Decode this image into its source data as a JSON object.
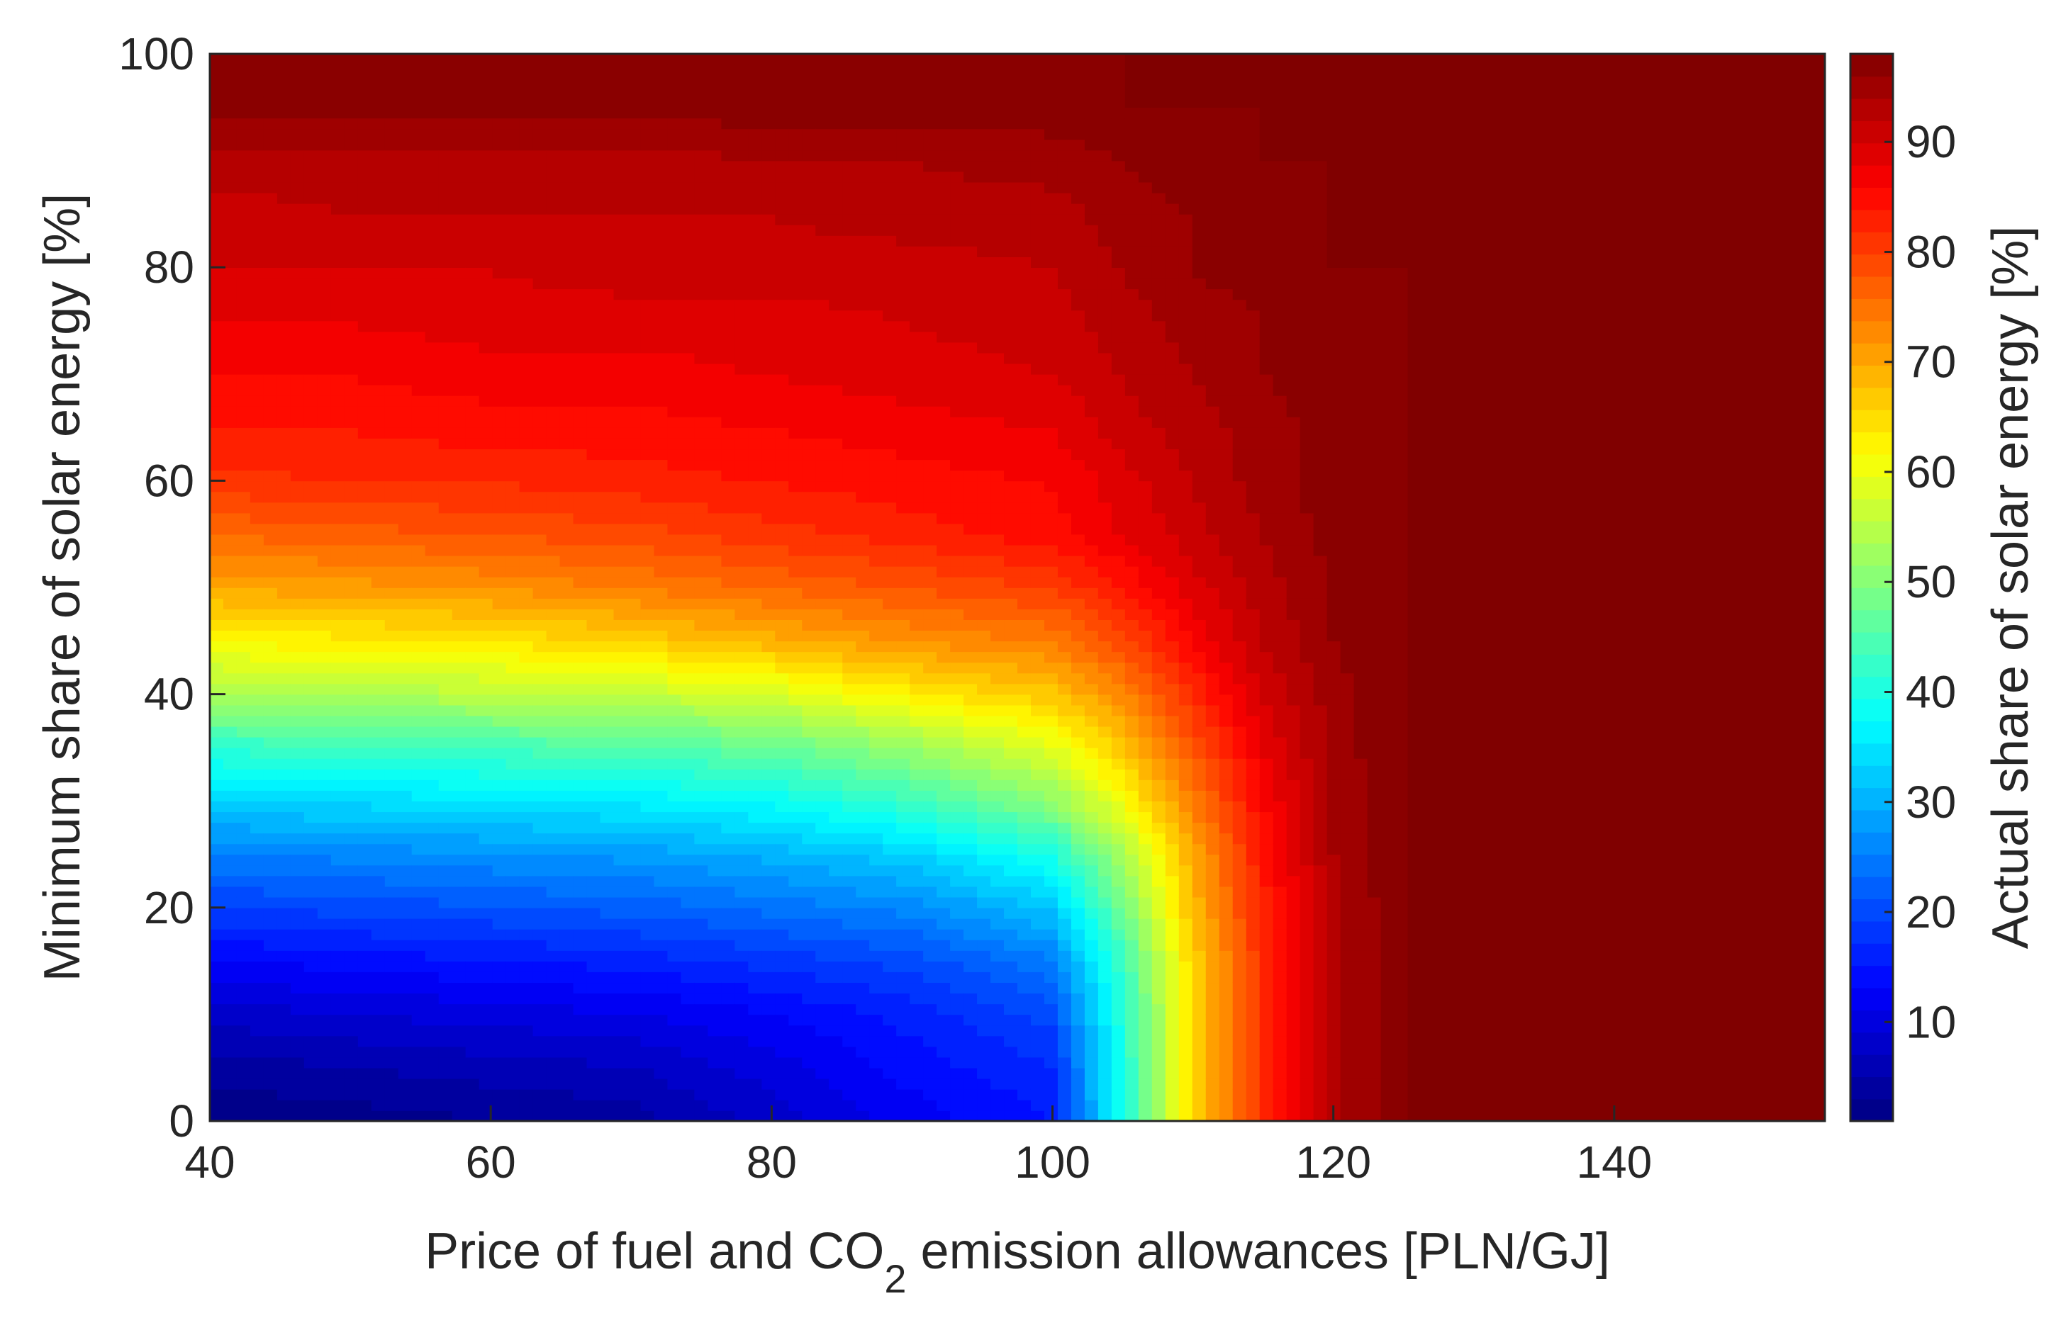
{
  "chart_data": {
    "type": "heatmap",
    "subtype": "filled-contour",
    "title": "",
    "xlabel": {
      "prefix": "Price of fuel and CO",
      "subscript": "2",
      "suffix": " emission allowances [PLN/GJ]"
    },
    "ylabel": "Minimum share of solar energy [%]",
    "colorbar_label": "Actual share of solar energy [%]",
    "colormap": "jet",
    "xlim": [
      40,
      155
    ],
    "ylim": [
      0,
      100
    ],
    "clim": [
      1,
      98
    ],
    "xticks": [
      40,
      60,
      80,
      100,
      120,
      140
    ],
    "yticks": [
      0,
      20,
      40,
      60,
      80,
      100
    ],
    "colorbar_ticks": [
      10,
      20,
      30,
      40,
      50,
      60,
      70,
      80,
      90
    ],
    "x": [
      40,
      50,
      60,
      70,
      80,
      90,
      100,
      105,
      110,
      115,
      120,
      125,
      130,
      140,
      155
    ],
    "y": [
      0,
      5,
      10,
      15,
      20,
      25,
      30,
      35,
      40,
      45,
      50,
      55,
      60,
      65,
      70,
      75,
      80,
      85,
      90,
      95,
      100
    ],
    "z": [
      [
        1,
        2,
        3,
        4,
        8,
        12,
        15,
        40,
        65,
        82,
        93,
        98,
        98,
        98,
        98
      ],
      [
        4,
        5,
        6,
        7,
        10,
        14,
        17,
        40,
        65,
        82,
        93,
        98,
        98,
        98,
        98
      ],
      [
        8,
        9,
        10,
        11,
        13,
        16,
        20,
        41,
        65,
        82,
        93,
        98,
        98,
        98,
        98
      ],
      [
        13,
        14,
        15,
        16,
        18,
        20,
        25,
        43,
        66,
        82,
        93,
        98,
        98,
        98,
        98
      ],
      [
        19,
        20,
        21,
        22,
        24,
        26,
        32,
        48,
        68,
        83,
        93,
        98,
        98,
        98,
        98
      ],
      [
        25,
        26,
        27,
        28,
        30,
        33,
        40,
        53,
        70,
        84,
        94,
        98,
        98,
        98,
        98
      ],
      [
        33,
        34,
        35,
        36,
        38,
        43,
        51,
        61,
        74,
        86,
        94,
        98,
        98,
        98,
        98
      ],
      [
        42,
        43,
        44,
        45,
        47,
        52,
        59,
        67,
        78,
        88,
        95,
        98,
        98,
        98,
        98
      ],
      [
        53,
        54,
        55,
        56,
        58,
        63,
        67,
        73,
        82,
        90,
        95,
        98,
        98,
        98,
        98
      ],
      [
        62,
        63,
        64,
        66,
        69,
        72,
        74,
        79,
        86,
        92,
        96,
        98,
        98,
        98,
        98
      ],
      [
        70,
        71,
        72,
        74,
        76,
        78,
        80,
        84,
        89,
        93,
        96,
        98,
        98,
        98,
        98
      ],
      [
        76,
        77,
        78,
        79,
        81,
        83,
        85,
        88,
        91,
        94,
        97,
        98,
        98,
        98,
        98
      ],
      [
        81,
        82,
        82,
        83,
        84,
        85,
        86,
        89,
        92,
        95,
        97,
        98,
        98,
        98,
        98
      ],
      [
        84,
        84,
        85,
        85,
        86,
        87,
        88,
        91,
        93,
        95,
        97,
        98,
        98,
        98,
        98
      ],
      [
        86,
        86,
        87,
        87,
        88,
        89,
        90,
        92,
        94,
        96,
        97,
        98,
        98,
        98,
        98
      ],
      [
        88,
        88,
        89,
        89,
        89,
        90,
        91,
        93,
        95,
        96,
        97,
        98,
        98,
        98,
        98
      ],
      [
        90,
        90,
        90,
        91,
        91,
        91,
        92,
        94,
        96,
        97,
        98,
        98,
        98,
        98,
        98
      ],
      [
        91,
        92,
        92,
        92,
        92,
        93,
        93,
        95,
        96,
        97,
        98,
        98,
        98,
        98,
        98
      ],
      [
        93,
        93,
        93,
        93,
        94,
        94,
        95,
        96,
        97,
        98,
        98,
        98,
        98,
        98,
        98
      ],
      [
        97,
        97,
        97,
        97,
        97,
        97,
        97,
        98,
        98,
        98,
        98,
        98,
        98,
        98,
        98
      ],
      [
        98,
        98,
        98,
        98,
        98,
        98,
        98,
        98,
        98,
        98,
        98,
        98,
        98,
        98,
        98
      ]
    ],
    "grid": false,
    "legend": "colorbar-right"
  }
}
